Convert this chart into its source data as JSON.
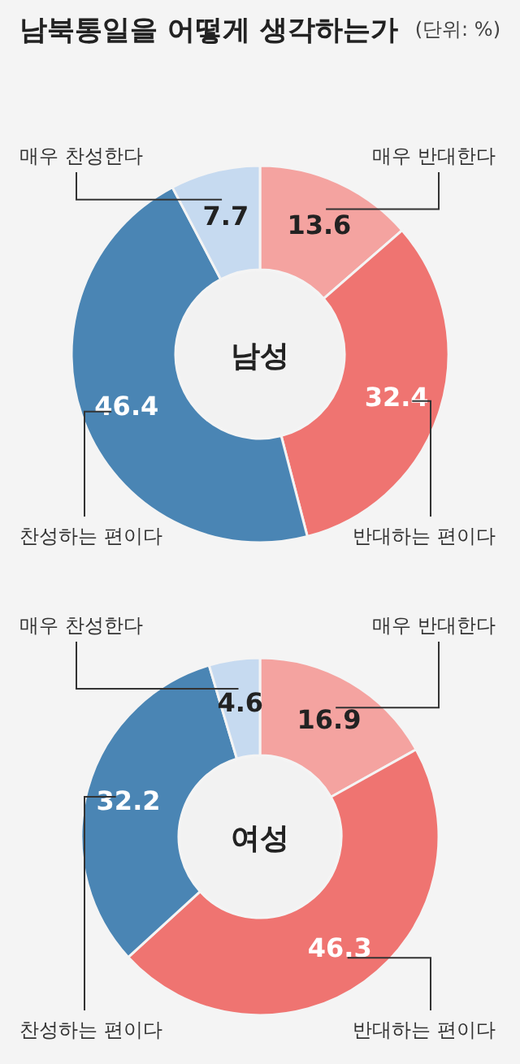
{
  "chart_data": [
    {
      "type": "donut",
      "title": "남북통일을 어떻게 생각하는가",
      "subtitle": "(단위: %)",
      "annotations": [
        "남성"
      ],
      "categories": [
        "매우 반대한다",
        "반대하는 편이다",
        "찬성하는 편이다",
        "매우 찬성한다"
      ],
      "values": [
        13.6,
        32.4,
        46.4,
        7.7
      ],
      "colors": [
        "#f4a3a0",
        "#ef7471",
        "#4a85b4",
        "#c6daf0"
      ],
      "data_labels": true
    },
    {
      "type": "donut",
      "annotations": [
        "여성"
      ],
      "categories": [
        "매우 반대한다",
        "반대하는 편이다",
        "찬성하는 편이다",
        "매우 찬성한다"
      ],
      "values": [
        16.9,
        46.3,
        32.2,
        4.6
      ],
      "colors": [
        "#f4a3a0",
        "#ef7471",
        "#4a85b4",
        "#c6daf0"
      ],
      "data_labels": true
    }
  ]
}
